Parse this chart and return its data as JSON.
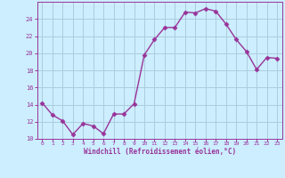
{
  "x": [
    0,
    1,
    2,
    3,
    4,
    5,
    6,
    7,
    8,
    9,
    10,
    11,
    12,
    13,
    14,
    15,
    16,
    17,
    18,
    19,
    20,
    21,
    22,
    23
  ],
  "y": [
    14.2,
    12.8,
    12.1,
    10.5,
    11.8,
    11.5,
    10.6,
    12.9,
    12.9,
    14.1,
    19.8,
    21.6,
    23.0,
    23.0,
    24.8,
    24.7,
    25.2,
    24.9,
    23.4,
    21.6,
    20.2,
    18.1,
    19.5,
    19.4
  ],
  "line_color": "#993399",
  "marker": "D",
  "marker_size": 2.5,
  "bg_color": "#cceeff",
  "grid_color": "#aaccdd",
  "xlabel": "Windchill (Refroidissement éolien,°C)",
  "xlabel_color": "#993399",
  "tick_color": "#993399",
  "ylim": [
    10,
    26
  ],
  "xlim": [
    -0.5,
    23.5
  ],
  "yticks": [
    10,
    12,
    14,
    16,
    18,
    20,
    22,
    24
  ],
  "xticks": [
    0,
    1,
    2,
    3,
    4,
    5,
    6,
    7,
    8,
    9,
    10,
    11,
    12,
    13,
    14,
    15,
    16,
    17,
    18,
    19,
    20,
    21,
    22,
    23
  ]
}
